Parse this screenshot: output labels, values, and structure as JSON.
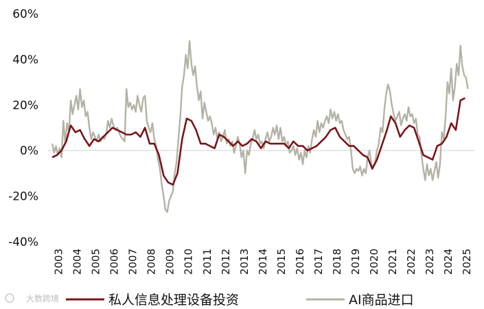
{
  "chart_data": {
    "type": "line",
    "title": "",
    "xlabel": "",
    "ylabel": "",
    "y_unit": "%",
    "ylim": [
      -40,
      60
    ],
    "y_ticks": [
      "60%",
      "40%",
      "20%",
      "0%",
      "-20%",
      "-40%"
    ],
    "x_ticks": [
      "2003",
      "2004",
      "2005",
      "2006",
      "2007",
      "2008",
      "2009",
      "2010",
      "2011",
      "2012",
      "2013",
      "2014",
      "2015",
      "2016",
      "2017",
      "2018",
      "2019",
      "2020",
      "2021",
      "2022",
      "2023",
      "2024",
      "2025"
    ],
    "grid": false,
    "legend_position": "bottom",
    "series": [
      {
        "name": "私人信息处理设备投资",
        "color": "#7a1418",
        "points": [
          [
            2003.0,
            -3
          ],
          [
            2003.25,
            -2
          ],
          [
            2003.5,
            0
          ],
          [
            2003.75,
            4
          ],
          [
            2004.0,
            11
          ],
          [
            2004.25,
            8
          ],
          [
            2004.5,
            9
          ],
          [
            2004.75,
            5
          ],
          [
            2005.0,
            2
          ],
          [
            2005.25,
            5
          ],
          [
            2005.5,
            4
          ],
          [
            2005.75,
            6
          ],
          [
            2006.0,
            8
          ],
          [
            2006.25,
            10
          ],
          [
            2006.5,
            9
          ],
          [
            2006.75,
            8
          ],
          [
            2007.0,
            7
          ],
          [
            2007.25,
            7
          ],
          [
            2007.5,
            8
          ],
          [
            2007.75,
            6
          ],
          [
            2008.0,
            10
          ],
          [
            2008.25,
            3
          ],
          [
            2008.5,
            3
          ],
          [
            2008.75,
            -2
          ],
          [
            2009.0,
            -11
          ],
          [
            2009.25,
            -14
          ],
          [
            2009.5,
            -15
          ],
          [
            2009.75,
            -10
          ],
          [
            2010.0,
            5
          ],
          [
            2010.25,
            14
          ],
          [
            2010.5,
            13
          ],
          [
            2010.75,
            9
          ],
          [
            2011.0,
            3
          ],
          [
            2011.25,
            3
          ],
          [
            2011.5,
            2
          ],
          [
            2011.75,
            1
          ],
          [
            2012.0,
            7
          ],
          [
            2012.25,
            6
          ],
          [
            2012.5,
            4
          ],
          [
            2012.75,
            2
          ],
          [
            2013.0,
            4
          ],
          [
            2013.25,
            2
          ],
          [
            2013.5,
            3
          ],
          [
            2013.75,
            5
          ],
          [
            2014.0,
            4
          ],
          [
            2014.25,
            1
          ],
          [
            2014.5,
            4
          ],
          [
            2014.75,
            3
          ],
          [
            2015.0,
            3
          ],
          [
            2015.25,
            3
          ],
          [
            2015.5,
            3
          ],
          [
            2015.75,
            1
          ],
          [
            2016.0,
            4
          ],
          [
            2016.25,
            2
          ],
          [
            2016.5,
            2
          ],
          [
            2016.75,
            0
          ],
          [
            2017.0,
            1
          ],
          [
            2017.25,
            2
          ],
          [
            2017.5,
            4
          ],
          [
            2017.75,
            6
          ],
          [
            2018.0,
            9
          ],
          [
            2018.25,
            10
          ],
          [
            2018.5,
            6
          ],
          [
            2018.75,
            4
          ],
          [
            2019.0,
            2
          ],
          [
            2019.25,
            2
          ],
          [
            2019.5,
            0
          ],
          [
            2019.75,
            -2
          ],
          [
            2020.0,
            -3
          ],
          [
            2020.25,
            -8
          ],
          [
            2020.5,
            -4
          ],
          [
            2020.75,
            2
          ],
          [
            2021.0,
            8
          ],
          [
            2021.25,
            15
          ],
          [
            2021.5,
            12
          ],
          [
            2021.75,
            6
          ],
          [
            2022.0,
            9
          ],
          [
            2022.25,
            11
          ],
          [
            2022.5,
            10
          ],
          [
            2022.75,
            4
          ],
          [
            2023.0,
            -2
          ],
          [
            2023.25,
            -3
          ],
          [
            2023.5,
            -4
          ],
          [
            2023.75,
            2
          ],
          [
            2024.0,
            3
          ],
          [
            2024.25,
            6
          ],
          [
            2024.5,
            12
          ],
          [
            2024.75,
            9
          ],
          [
            2025.0,
            22
          ],
          [
            2025.25,
            23
          ]
        ]
      },
      {
        "name": "AI商品进口",
        "color": "#b4b2a5",
        "points": [
          [
            2003.0,
            3
          ],
          [
            2003.1,
            -1
          ],
          [
            2003.2,
            2
          ],
          [
            2003.3,
            -2
          ],
          [
            2003.4,
            1
          ],
          [
            2003.5,
            -3
          ],
          [
            2003.6,
            13
          ],
          [
            2003.7,
            3
          ],
          [
            2003.8,
            12
          ],
          [
            2003.9,
            8
          ],
          [
            2004.0,
            22
          ],
          [
            2004.1,
            16
          ],
          [
            2004.2,
            20
          ],
          [
            2004.3,
            24
          ],
          [
            2004.4,
            18
          ],
          [
            2004.5,
            27
          ],
          [
            2004.6,
            19
          ],
          [
            2004.7,
            22
          ],
          [
            2004.8,
            15
          ],
          [
            2004.9,
            17
          ],
          [
            2005.0,
            10
          ],
          [
            2005.1,
            5
          ],
          [
            2005.2,
            8
          ],
          [
            2005.3,
            6
          ],
          [
            2005.4,
            4
          ],
          [
            2005.5,
            7
          ],
          [
            2005.6,
            4
          ],
          [
            2005.7,
            6
          ],
          [
            2005.8,
            5
          ],
          [
            2005.9,
            7
          ],
          [
            2006.0,
            13
          ],
          [
            2006.1,
            10
          ],
          [
            2006.2,
            14
          ],
          [
            2006.3,
            11
          ],
          [
            2006.4,
            9
          ],
          [
            2006.5,
            10
          ],
          [
            2006.6,
            8
          ],
          [
            2006.7,
            6
          ],
          [
            2006.8,
            5
          ],
          [
            2006.9,
            4
          ],
          [
            2007.0,
            27
          ],
          [
            2007.1,
            19
          ],
          [
            2007.2,
            21
          ],
          [
            2007.3,
            18
          ],
          [
            2007.4,
            20
          ],
          [
            2007.5,
            17
          ],
          [
            2007.6,
            24
          ],
          [
            2007.7,
            20
          ],
          [
            2007.8,
            17
          ],
          [
            2007.9,
            23
          ],
          [
            2008.0,
            24
          ],
          [
            2008.1,
            13
          ],
          [
            2008.2,
            10
          ],
          [
            2008.3,
            8
          ],
          [
            2008.4,
            12
          ],
          [
            2008.5,
            5
          ],
          [
            2008.6,
            2
          ],
          [
            2008.7,
            -4
          ],
          [
            2008.8,
            -8
          ],
          [
            2008.9,
            -15
          ],
          [
            2009.0,
            -20
          ],
          [
            2009.1,
            -26
          ],
          [
            2009.2,
            -27
          ],
          [
            2009.3,
            -22
          ],
          [
            2009.4,
            -20
          ],
          [
            2009.5,
            -18
          ],
          [
            2009.6,
            -10
          ],
          [
            2009.7,
            -5
          ],
          [
            2009.8,
            5
          ],
          [
            2009.9,
            15
          ],
          [
            2010.0,
            28
          ],
          [
            2010.1,
            33
          ],
          [
            2010.2,
            42
          ],
          [
            2010.3,
            36
          ],
          [
            2010.4,
            48
          ],
          [
            2010.5,
            38
          ],
          [
            2010.6,
            33
          ],
          [
            2010.7,
            37
          ],
          [
            2010.8,
            28
          ],
          [
            2010.9,
            22
          ],
          [
            2011.0,
            26
          ],
          [
            2011.1,
            14
          ],
          [
            2011.2,
            21
          ],
          [
            2011.3,
            17
          ],
          [
            2011.4,
            13
          ],
          [
            2011.5,
            15
          ],
          [
            2011.6,
            12
          ],
          [
            2011.7,
            7
          ],
          [
            2011.8,
            10
          ],
          [
            2011.9,
            5
          ],
          [
            2012.0,
            8
          ],
          [
            2012.1,
            4
          ],
          [
            2012.2,
            6
          ],
          [
            2012.3,
            9
          ],
          [
            2012.4,
            3
          ],
          [
            2012.5,
            5
          ],
          [
            2012.6,
            2
          ],
          [
            2012.7,
            4
          ],
          [
            2012.8,
            -1
          ],
          [
            2012.9,
            2
          ],
          [
            2013.0,
            6
          ],
          [
            2013.1,
            3
          ],
          [
            2013.2,
            -3
          ],
          [
            2013.3,
            0
          ],
          [
            2013.4,
            -10
          ],
          [
            2013.5,
            0
          ],
          [
            2013.6,
            -2
          ],
          [
            2013.7,
            3
          ],
          [
            2013.8,
            5
          ],
          [
            2013.9,
            9
          ],
          [
            2014.0,
            5
          ],
          [
            2014.1,
            7
          ],
          [
            2014.2,
            3
          ],
          [
            2014.3,
            4
          ],
          [
            2014.4,
            1
          ],
          [
            2014.5,
            5
          ],
          [
            2014.6,
            8
          ],
          [
            2014.7,
            4
          ],
          [
            2014.8,
            6
          ],
          [
            2014.9,
            10
          ],
          [
            2015.0,
            7
          ],
          [
            2015.1,
            11
          ],
          [
            2015.2,
            5
          ],
          [
            2015.3,
            10
          ],
          [
            2015.4,
            4
          ],
          [
            2015.5,
            6
          ],
          [
            2015.6,
            2
          ],
          [
            2015.7,
            4
          ],
          [
            2015.8,
            -1
          ],
          [
            2015.9,
            0
          ],
          [
            2016.0,
            2
          ],
          [
            2016.1,
            -2
          ],
          [
            2016.2,
            1
          ],
          [
            2016.3,
            -4
          ],
          [
            2016.4,
            -1
          ],
          [
            2016.5,
            -6
          ],
          [
            2016.6,
            0
          ],
          [
            2016.7,
            -3
          ],
          [
            2016.8,
            2
          ],
          [
            2016.9,
            -1
          ],
          [
            2017.0,
            5
          ],
          [
            2017.1,
            9
          ],
          [
            2017.2,
            6
          ],
          [
            2017.3,
            13
          ],
          [
            2017.4,
            8
          ],
          [
            2017.5,
            12
          ],
          [
            2017.6,
            10
          ],
          [
            2017.7,
            13
          ],
          [
            2017.8,
            15
          ],
          [
            2017.9,
            12
          ],
          [
            2018.0,
            18
          ],
          [
            2018.1,
            14
          ],
          [
            2018.2,
            17
          ],
          [
            2018.3,
            13
          ],
          [
            2018.4,
            16
          ],
          [
            2018.5,
            12
          ],
          [
            2018.6,
            13
          ],
          [
            2018.7,
            9
          ],
          [
            2018.8,
            7
          ],
          [
            2018.9,
            5
          ],
          [
            2019.0,
            6
          ],
          [
            2019.1,
            0
          ],
          [
            2019.2,
            -8
          ],
          [
            2019.3,
            -10
          ],
          [
            2019.4,
            -8
          ],
          [
            2019.5,
            -9
          ],
          [
            2019.6,
            -7
          ],
          [
            2019.7,
            -11
          ],
          [
            2019.8,
            -8
          ],
          [
            2019.9,
            -10
          ],
          [
            2020.0,
            -3
          ],
          [
            2020.1,
            0
          ],
          [
            2020.2,
            -6
          ],
          [
            2020.3,
            -7
          ],
          [
            2020.4,
            -5
          ],
          [
            2020.5,
            0
          ],
          [
            2020.6,
            3
          ],
          [
            2020.7,
            10
          ],
          [
            2020.8,
            8
          ],
          [
            2020.9,
            18
          ],
          [
            2021.0,
            25
          ],
          [
            2021.1,
            29
          ],
          [
            2021.2,
            26
          ],
          [
            2021.3,
            20
          ],
          [
            2021.4,
            16
          ],
          [
            2021.5,
            13
          ],
          [
            2021.6,
            15
          ],
          [
            2021.7,
            17
          ],
          [
            2021.8,
            11
          ],
          [
            2021.9,
            14
          ],
          [
            2022.0,
            16
          ],
          [
            2022.1,
            13
          ],
          [
            2022.2,
            19
          ],
          [
            2022.3,
            15
          ],
          [
            2022.4,
            16
          ],
          [
            2022.5,
            12
          ],
          [
            2022.6,
            14
          ],
          [
            2022.7,
            7
          ],
          [
            2022.8,
            6
          ],
          [
            2022.9,
            -2
          ],
          [
            2023.0,
            -8
          ],
          [
            2023.1,
            -13
          ],
          [
            2023.2,
            -6
          ],
          [
            2023.3,
            -11
          ],
          [
            2023.4,
            -8
          ],
          [
            2023.5,
            -13
          ],
          [
            2023.6,
            -9
          ],
          [
            2023.7,
            -5
          ],
          [
            2023.8,
            -12
          ],
          [
            2023.9,
            -6
          ],
          [
            2024.0,
            8
          ],
          [
            2024.1,
            5
          ],
          [
            2024.2,
            15
          ],
          [
            2024.3,
            30
          ],
          [
            2024.4,
            25
          ],
          [
            2024.5,
            36
          ],
          [
            2024.6,
            22
          ],
          [
            2024.7,
            28
          ],
          [
            2024.8,
            38
          ],
          [
            2024.9,
            33
          ],
          [
            2025.0,
            46
          ],
          [
            2025.1,
            37
          ],
          [
            2025.2,
            33
          ],
          [
            2025.3,
            32
          ],
          [
            2025.4,
            27
          ]
        ]
      }
    ],
    "watermark": "大数跨境"
  }
}
